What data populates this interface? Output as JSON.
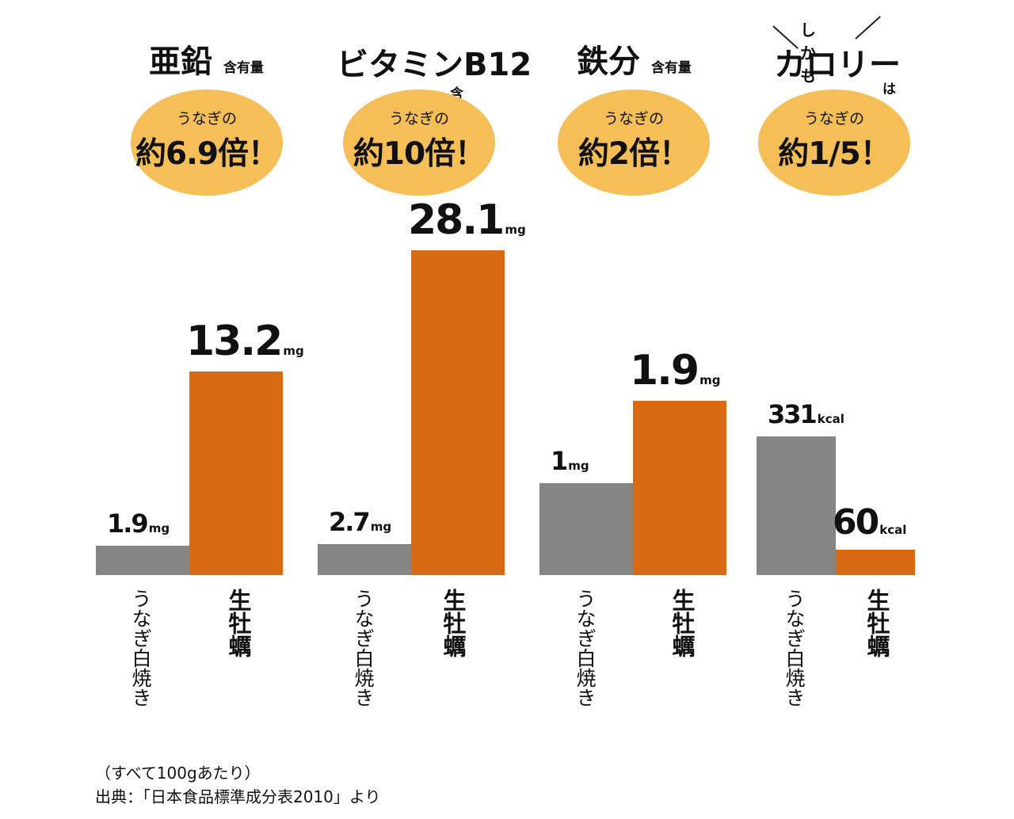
{
  "chart_data": [
    {
      "type": "bar",
      "title": "亜鉛",
      "title_suffix": "含有量",
      "badge_sub": "うなぎの",
      "badge_main": "約6.9倍！",
      "categories": [
        "うなぎ白焼き",
        "生牡蠣"
      ],
      "values": [
        1.9,
        13.2
      ],
      "labels": [
        "1.9",
        "13.2"
      ],
      "unit": "mg",
      "colors": [
        "#858585",
        "#d76a13"
      ]
    },
    {
      "type": "bar",
      "title": "ビタミンB12",
      "title_suffix": "含有量",
      "badge_sub": "うなぎの",
      "badge_main": "約10倍！",
      "categories": [
        "うなぎ白焼き",
        "生牡蠣"
      ],
      "values": [
        2.7,
        28.1
      ],
      "labels": [
        "2.7",
        "28.1"
      ],
      "unit": "mg",
      "colors": [
        "#858585",
        "#d76a13"
      ]
    },
    {
      "type": "bar",
      "title": "鉄分",
      "title_suffix": "含有量",
      "badge_sub": "うなぎの",
      "badge_main": "約2倍！",
      "categories": [
        "うなぎ白焼き",
        "生牡蠣"
      ],
      "values": [
        1,
        1.9
      ],
      "labels": [
        "1",
        "1.9"
      ],
      "unit": "mg",
      "colors": [
        "#858585",
        "#d76a13"
      ]
    },
    {
      "type": "bar",
      "title": "カロリー",
      "title_prefix": "しかも",
      "title_suffix": "は",
      "badge_sub": "うなぎの",
      "badge_main": "約1/5！",
      "categories": [
        "うなぎ白焼き",
        "生牡蠣"
      ],
      "values": [
        331,
        60
      ],
      "labels": [
        "331",
        "60"
      ],
      "unit": "kcal",
      "colors": [
        "#858585",
        "#d76a13"
      ]
    }
  ],
  "footer": {
    "note": "（すべて100gあたり）",
    "source": "出典：「日本食品標準成分表2010」より"
  }
}
